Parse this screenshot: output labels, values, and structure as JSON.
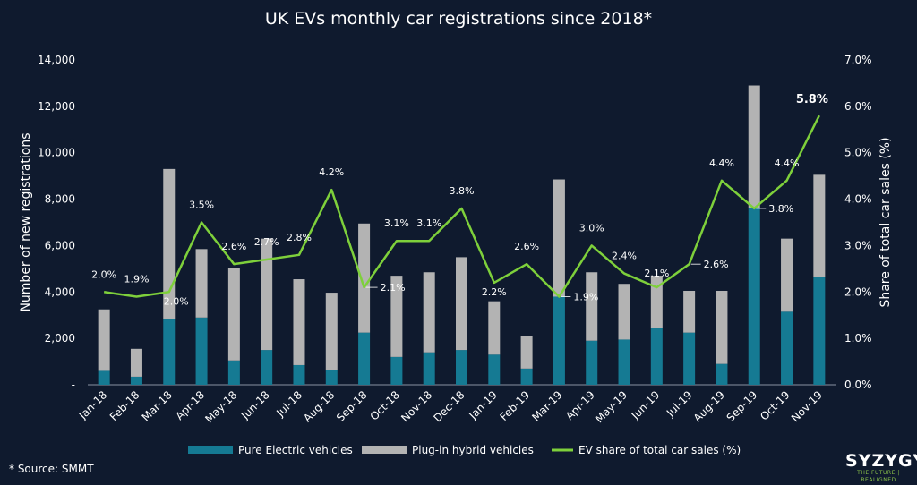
{
  "title": "UK EVs monthly car registrations since 2018*",
  "source": "* Source: SMMT",
  "logo": {
    "main": "SYZYGY",
    "sub": "THE FUTURE | REALIGNED"
  },
  "colors": {
    "background": "#0f1a2e",
    "bev": "#157a93",
    "phev": "#b3b3b3",
    "share_line": "#7ed03b",
    "highlight": "#8fd84a"
  },
  "chart_data": {
    "type": "bar",
    "title": "UK EVs monthly car registrations since 2018*",
    "categories": [
      "Jan-18",
      "Feb-18",
      "Mar-18",
      "Apr-18",
      "May-18",
      "Jun-18",
      "Jul-18",
      "Aug-18",
      "Sep-18",
      "Oct-18",
      "Nov-18",
      "Dec-18",
      "Jan-19",
      "Feb-19",
      "Mar-19",
      "Apr-19",
      "May-19",
      "Jun-19",
      "Jul-19",
      "Aug-19",
      "Sep-19",
      "Oct-19",
      "Nov-19"
    ],
    "ylabel": "Number of new registrations",
    "y2label": "Share of total car sales (%)",
    "ylim": [
      0,
      14000
    ],
    "y2lim": [
      0,
      7
    ],
    "y_ticks": [
      "-",
      "2,000",
      "4,000",
      "6,000",
      "8,000",
      "10,000",
      "12,000",
      "14,000"
    ],
    "y2_ticks": [
      "0.0%",
      "1.0%",
      "2.0%",
      "3.0%",
      "4.0%",
      "5.0%",
      "6.0%",
      "7.0%"
    ],
    "stacked": true,
    "series": [
      {
        "name": "Pure Electric vehicles",
        "type": "bar",
        "values": [
          600,
          350,
          2850,
          2900,
          1050,
          1500,
          850,
          620,
          2250,
          1200,
          1400,
          1500,
          1300,
          700,
          3800,
          1900,
          1950,
          2450,
          2250,
          900,
          7600,
          3150,
          4650
        ]
      },
      {
        "name": "Plug-in hybrid vehicles",
        "type": "bar",
        "values": [
          2650,
          1200,
          6450,
          2950,
          4000,
          4800,
          3700,
          3350,
          4700,
          3500,
          3450,
          4000,
          2300,
          1400,
          5050,
          2950,
          2400,
          2250,
          1800,
          3150,
          5300,
          3150,
          4400
        ]
      },
      {
        "name": "EV share of total car sales (%)",
        "type": "line",
        "axis": "right",
        "values": [
          2.0,
          1.9,
          2.0,
          3.5,
          2.6,
          2.7,
          2.8,
          4.2,
          2.1,
          3.1,
          3.1,
          3.8,
          2.2,
          2.6,
          1.9,
          3.0,
          2.4,
          2.1,
          2.6,
          4.4,
          3.8,
          4.4,
          5.8
        ],
        "labels": [
          "2.0%",
          "1.9%",
          "2.0%",
          "3.5%",
          "2.6%",
          "2.7%",
          "2.8%",
          "4.2%",
          "2.1%",
          "3.1%",
          "3.1%",
          "3.8%",
          "2.2%",
          "2.6%",
          "1.9%",
          "3.0%",
          "2.4%",
          "2.1%",
          "2.6%",
          "4.4%",
          "3.8%",
          "4.4%",
          "5.8%"
        ]
      }
    ],
    "legend": "bottom"
  }
}
